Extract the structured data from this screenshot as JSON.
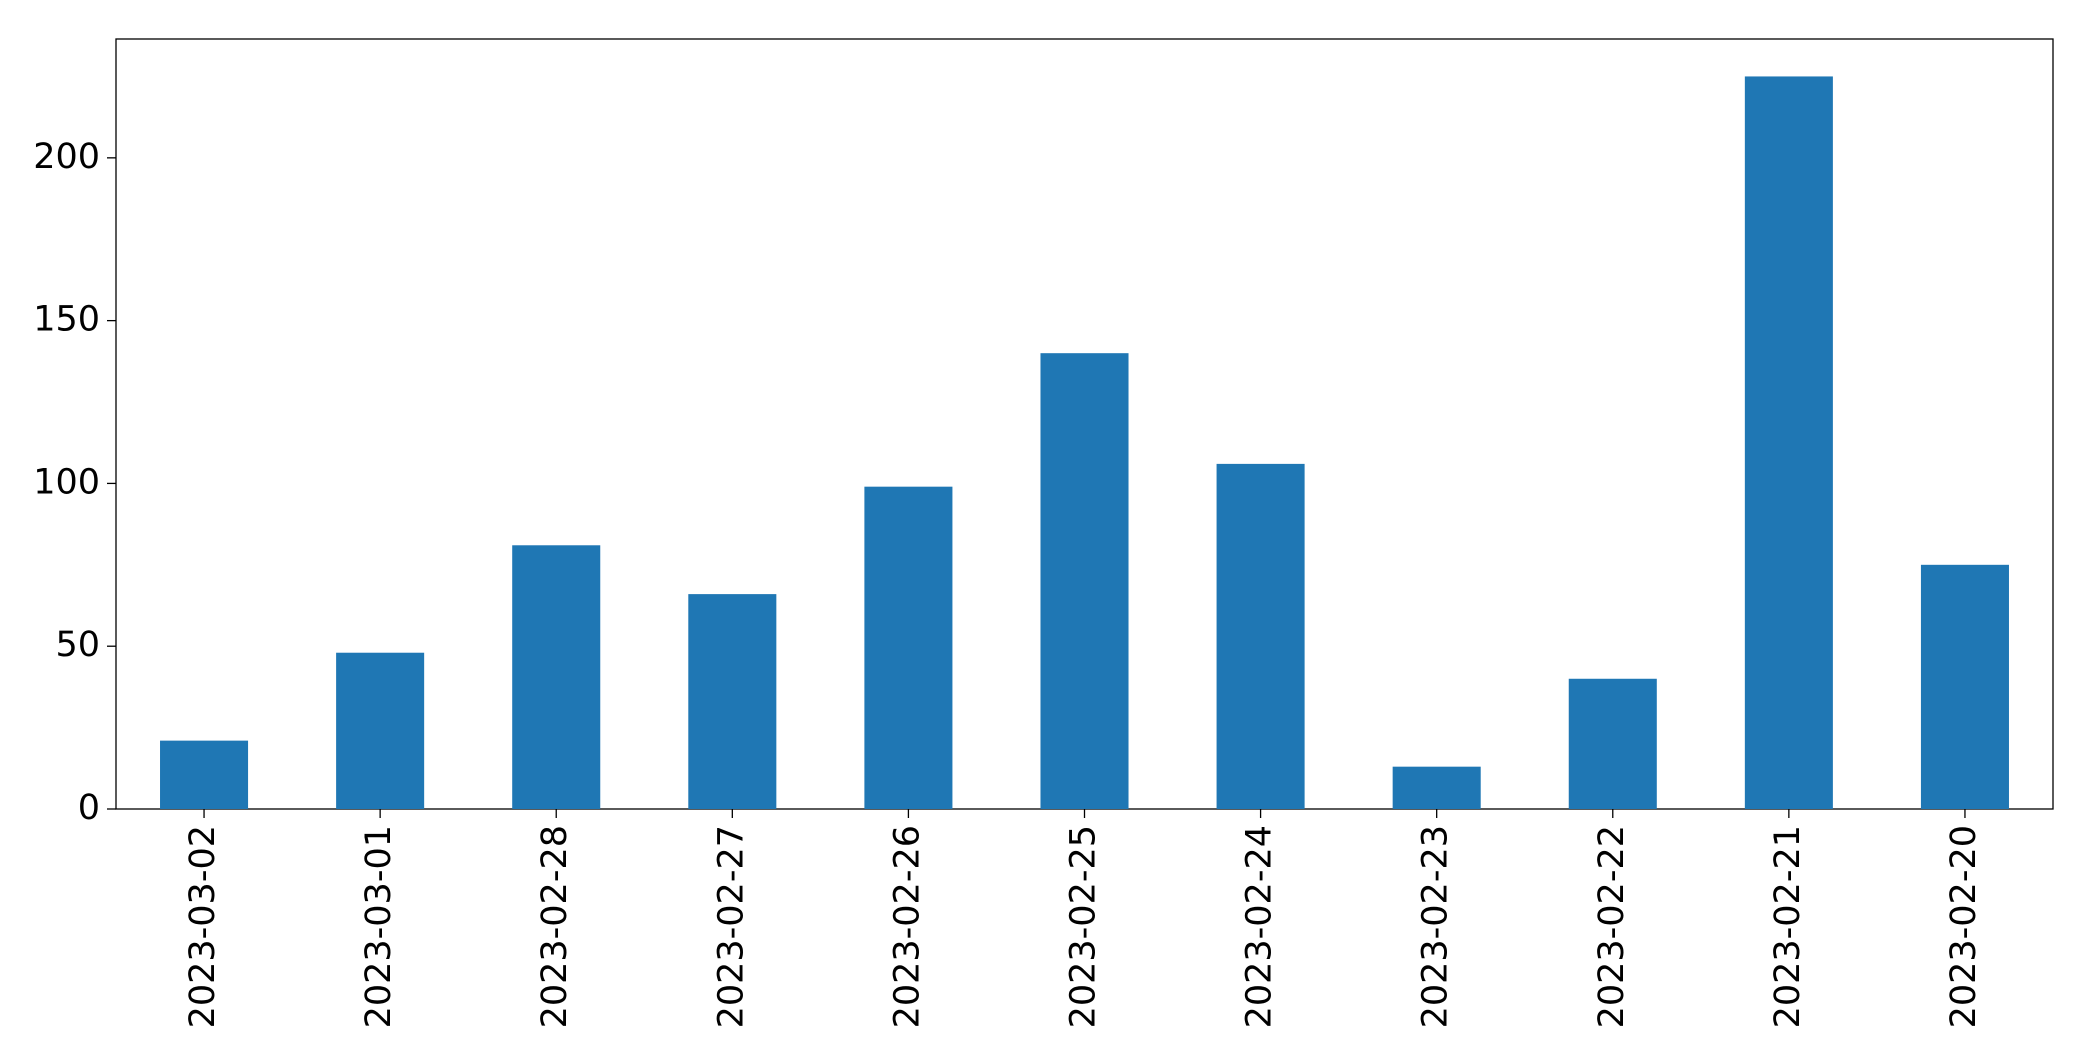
{
  "chart_data": {
    "type": "bar",
    "categories": [
      "2023-03-02",
      "2023-03-01",
      "2023-02-28",
      "2023-02-27",
      "2023-02-26",
      "2023-02-25",
      "2023-02-24",
      "2023-02-23",
      "2023-02-22",
      "2023-02-21",
      "2023-02-20"
    ],
    "values": [
      21,
      48,
      81,
      66,
      99,
      140,
      106,
      13,
      40,
      225,
      75
    ],
    "color": "#1f77b4",
    "ylim": [
      0,
      236.5
    ],
    "yticks": [
      0,
      50,
      100,
      150,
      200
    ],
    "grid": false
  }
}
